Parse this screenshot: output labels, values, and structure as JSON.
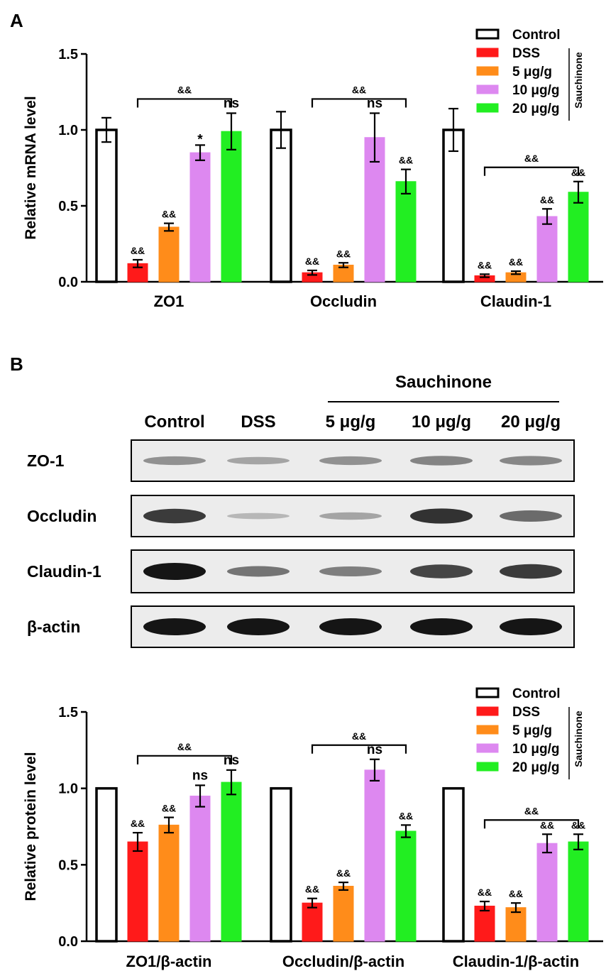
{
  "panel_a_label": "A",
  "panel_b_label": "B",
  "legend": {
    "items": [
      {
        "label": "Control",
        "color": "#ffffff"
      },
      {
        "label": "DSS",
        "color": "#ff1a1a"
      },
      {
        "label": "5 μg/g",
        "color": "#ff8c1a"
      },
      {
        "label": "10 μg/g",
        "color": "#dd88f0"
      },
      {
        "label": "20 μg/g",
        "color": "#22ee22"
      }
    ],
    "group_label": "Sauchinone"
  },
  "western_blot": {
    "group_label": "Sauchinone",
    "lanes": [
      "Control",
      "DSS",
      "5 μg/g",
      "10 μg/g",
      "20 μg/g"
    ],
    "rows": [
      {
        "label": "ZO-1",
        "intensity": [
          0.35,
          0.25,
          0.35,
          0.42,
          0.4
        ]
      },
      {
        "label": "Occludin",
        "intensity": [
          0.8,
          0.15,
          0.25,
          0.85,
          0.55
        ]
      },
      {
        "label": "Claudin-1",
        "intensity": [
          1.0,
          0.5,
          0.45,
          0.75,
          0.8
        ]
      },
      {
        "label": "β-actin",
        "intensity": [
          1.0,
          1.0,
          1.0,
          1.0,
          1.0
        ]
      }
    ]
  },
  "chart_data": [
    {
      "type": "bar",
      "ylabel": "Relative mRNA level",
      "ylim": [
        0,
        1.5
      ],
      "yticks": [
        "0.0",
        "0.5",
        "1.0",
        "1.5"
      ],
      "categories": [
        "ZO1",
        "Occludin",
        "Claudin-1"
      ],
      "series": [
        {
          "name": "Control",
          "values": [
            1.0,
            1.0,
            1.0
          ],
          "errors": [
            0.08,
            0.12,
            0.14
          ]
        },
        {
          "name": "DSS",
          "values": [
            0.12,
            0.06,
            0.04
          ],
          "errors": [
            0.025,
            0.015,
            0.01
          ]
        },
        {
          "name": "5 μg/g",
          "values": [
            0.36,
            0.11,
            0.06
          ],
          "errors": [
            0.025,
            0.015,
            0.01
          ]
        },
        {
          "name": "10 μg/g",
          "values": [
            0.85,
            0.95,
            0.43
          ],
          "errors": [
            0.05,
            0.16,
            0.05
          ]
        },
        {
          "name": "20 μg/g",
          "values": [
            0.99,
            0.66,
            0.59
          ],
          "errors": [
            0.12,
            0.08,
            0.07
          ]
        }
      ],
      "annotations": [
        [
          "",
          "&&",
          "&&",
          "*",
          "ns"
        ],
        [
          "",
          "&&",
          "&&",
          "ns",
          "&&"
        ],
        [
          "",
          "&&",
          "&&",
          "&&",
          "&&"
        ]
      ],
      "bracket_label": "&&"
    },
    {
      "type": "bar",
      "ylabel": "Relative protein level",
      "ylim": [
        0,
        1.5
      ],
      "yticks": [
        "0.0",
        "0.5",
        "1.0",
        "1.5"
      ],
      "categories": [
        "ZO1/β-actin",
        "Occludin/β-actin",
        "Claudin-1/β-actin"
      ],
      "series": [
        {
          "name": "Control",
          "values": [
            1.0,
            1.0,
            1.0
          ],
          "errors": [
            0,
            0,
            0
          ]
        },
        {
          "name": "DSS",
          "values": [
            0.65,
            0.25,
            0.23
          ],
          "errors": [
            0.06,
            0.03,
            0.03
          ]
        },
        {
          "name": "5 μg/g",
          "values": [
            0.76,
            0.36,
            0.22
          ],
          "errors": [
            0.05,
            0.025,
            0.03
          ]
        },
        {
          "name": "10 μg/g",
          "values": [
            0.95,
            1.12,
            0.64
          ],
          "errors": [
            0.07,
            0.07,
            0.06
          ]
        },
        {
          "name": "20 μg/g",
          "values": [
            1.04,
            0.72,
            0.65
          ],
          "errors": [
            0.08,
            0.04,
            0.05
          ]
        }
      ],
      "annotations": [
        [
          "",
          "&&",
          "&&",
          "ns",
          "ns"
        ],
        [
          "",
          "&&",
          "&&",
          "ns",
          "&&"
        ],
        [
          "",
          "&&",
          "&&",
          "&&",
          "&&"
        ]
      ],
      "bracket_label": "&&"
    }
  ]
}
